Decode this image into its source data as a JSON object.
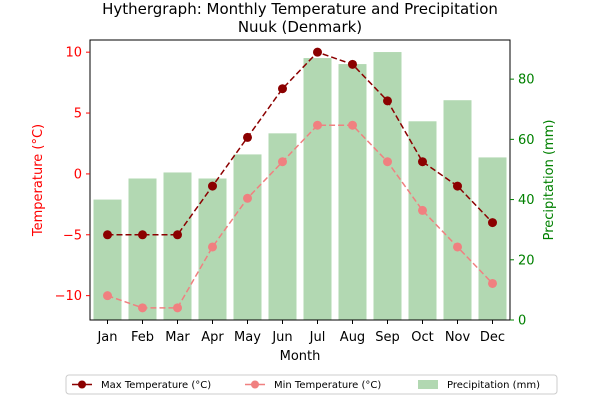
{
  "chart_data": {
    "type": "bar",
    "title": "Hythergraph: Monthly Temperature and Precipitation",
    "subtitle": "Nuuk (Denmark)",
    "xlabel": "Month",
    "ylabel_left": "Temperature (°C)",
    "ylabel_right": "Precipitation (mm)",
    "categories": [
      "Jan",
      "Feb",
      "Mar",
      "Apr",
      "May",
      "Jun",
      "Jul",
      "Aug",
      "Sep",
      "Oct",
      "Nov",
      "Dec"
    ],
    "ylim_left": [
      -12,
      11
    ],
    "yticks_left": [
      -10,
      -5,
      0,
      5,
      10
    ],
    "ylim_right": [
      0,
      93
    ],
    "yticks_right": [
      0,
      20,
      40,
      60,
      80
    ],
    "grid": false,
    "legend_position": "bottom-center",
    "series": [
      {
        "name": "Precipitation (mm)",
        "type": "bar",
        "axis": "right",
        "color": "#b2d8b2",
        "values": [
          40,
          47,
          49,
          47,
          55,
          62,
          87,
          85,
          89,
          66,
          73,
          54
        ]
      },
      {
        "name": "Max Temperature (°C)",
        "type": "line",
        "axis": "left",
        "color": "#8b0000",
        "marker": "circle",
        "linestyle": "dashed",
        "values": [
          -5,
          -5,
          -5,
          -1,
          3,
          7,
          10,
          9,
          6,
          1,
          -1,
          -4
        ]
      },
      {
        "name": "Min Temperature (°C)",
        "type": "line",
        "axis": "left",
        "color": "#f08080",
        "marker": "circle",
        "linestyle": "dashed",
        "values": [
          -10,
          -11,
          -11,
          -6,
          -2,
          1,
          4,
          4,
          1,
          -3,
          -6,
          -9
        ]
      }
    ],
    "colors": {
      "left_axis": "#ff0000",
      "right_axis": "#008000"
    }
  }
}
